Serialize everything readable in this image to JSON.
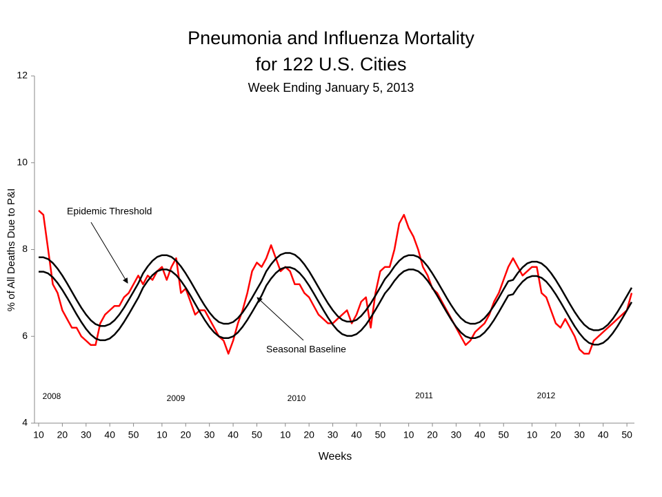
{
  "chart_data": {
    "type": "line",
    "title": "Pneumonia and Influenza Mortality",
    "title_line2": "for 122 U.S. Cities",
    "subtitle": "Week Ending  January 5, 2013",
    "y_label": "% of All Deaths Due to P&I",
    "x_label": "Weeks",
    "ylim": [
      4,
      12
    ],
    "yticks": [
      4,
      6,
      8,
      10,
      12
    ],
    "annotations": [
      "2008",
      "2009",
      "2010",
      "2011",
      "2012"
    ],
    "categories": [
      "10",
      null,
      null,
      null,
      null,
      "20",
      null,
      null,
      null,
      null,
      "30",
      null,
      null,
      null,
      null,
      "40",
      null,
      null,
      null,
      null,
      "50",
      null,
      null,
      null,
      null,
      null,
      "10",
      null,
      null,
      null,
      null,
      "20",
      null,
      null,
      null,
      null,
      "30",
      null,
      null,
      null,
      null,
      "40",
      null,
      null,
      null,
      null,
      "50",
      null,
      null,
      null,
      null,
      null,
      "10",
      null,
      null,
      null,
      null,
      "20",
      null,
      null,
      null,
      null,
      "30",
      null,
      null,
      null,
      null,
      "40",
      null,
      null,
      null,
      null,
      "50",
      null,
      null,
      null,
      null,
      null,
      "10",
      null,
      null,
      null,
      null,
      "20",
      null,
      null,
      null,
      null,
      "30",
      null,
      null,
      null,
      null,
      "40",
      null,
      null,
      null,
      null,
      "50",
      null,
      null,
      null,
      null,
      null,
      "10",
      null,
      null,
      null,
      null,
      "20",
      null,
      null,
      null,
      null,
      "30",
      null,
      null,
      null,
      null,
      "40",
      null,
      null,
      null,
      null,
      "50",
      null
    ],
    "series": [
      {
        "color": "#ff0000",
        "width": 2.5,
        "values": [
          8.9,
          8.8,
          8.0,
          7.2,
          7.0,
          6.6,
          6.4,
          6.2,
          6.2,
          6.0,
          5.9,
          5.8,
          5.8,
          6.3,
          6.5,
          6.6,
          6.7,
          6.7,
          6.9,
          7.0,
          7.2,
          7.4,
          7.2,
          7.4,
          7.3,
          7.5,
          7.6,
          7.3,
          7.6,
          7.8,
          7.0,
          7.1,
          6.8,
          6.5,
          6.6,
          6.6,
          6.4,
          6.2,
          6.0,
          5.9,
          5.6,
          5.9,
          6.3,
          6.6,
          7.0,
          7.5,
          7.7,
          7.6,
          7.8,
          8.1,
          7.8,
          7.5,
          7.6,
          7.5,
          7.2,
          7.2,
          7.0,
          6.9,
          6.7,
          6.5,
          6.4,
          6.3,
          6.3,
          6.4,
          6.5,
          6.6,
          6.3,
          6.5,
          6.8,
          6.9,
          6.2,
          7.0,
          7.5,
          7.6,
          7.6,
          8.0,
          8.6,
          8.8,
          8.5,
          8.3,
          8.0,
          7.6,
          7.4,
          7.1,
          7.0,
          6.8,
          6.6,
          6.4,
          6.2,
          6.0,
          5.8,
          5.9,
          6.1,
          6.2,
          6.3,
          6.5,
          6.8,
          7.0,
          7.3,
          7.6,
          7.8,
          7.6,
          7.4,
          7.5,
          7.6,
          7.6,
          7.0,
          6.9,
          6.6,
          6.3,
          6.2,
          6.4,
          6.2,
          6.0,
          5.7,
          5.6,
          5.6,
          5.9,
          6.0,
          6.1,
          6.2,
          6.3,
          6.4,
          6.5,
          6.6,
          7.0
        ]
      },
      {
        "name": "Epidemic Threshold",
        "color": "#000000",
        "width": 2.5,
        "values": [
          7.82,
          7.82,
          7.78,
          7.69,
          7.56,
          7.4,
          7.22,
          7.03,
          6.84,
          6.66,
          6.5,
          6.37,
          6.28,
          6.24,
          6.24,
          6.28,
          6.37,
          6.5,
          6.66,
          6.84,
          7.03,
          7.22,
          7.45,
          7.61,
          7.74,
          7.83,
          7.87,
          7.87,
          7.83,
          7.74,
          7.61,
          7.45,
          7.27,
          7.08,
          6.89,
          6.71,
          6.55,
          6.42,
          6.33,
          6.29,
          6.29,
          6.33,
          6.42,
          6.55,
          6.71,
          6.89,
          7.08,
          7.27,
          7.5,
          7.66,
          7.79,
          7.88,
          7.92,
          7.92,
          7.88,
          7.79,
          7.66,
          7.5,
          7.32,
          7.13,
          6.94,
          6.76,
          6.6,
          6.47,
          6.38,
          6.34,
          6.34,
          6.38,
          6.47,
          6.6,
          6.76,
          6.94,
          7.13,
          7.32,
          7.45,
          7.61,
          7.74,
          7.83,
          7.87,
          7.87,
          7.83,
          7.74,
          7.61,
          7.45,
          7.27,
          7.08,
          6.89,
          6.71,
          6.55,
          6.42,
          6.33,
          6.29,
          6.29,
          6.33,
          6.42,
          6.55,
          6.71,
          6.89,
          7.08,
          7.27,
          7.3,
          7.46,
          7.59,
          7.68,
          7.72,
          7.72,
          7.68,
          7.59,
          7.46,
          7.3,
          7.12,
          6.93,
          6.74,
          6.56,
          6.4,
          6.27,
          6.18,
          6.14,
          6.14,
          6.18,
          6.27,
          6.4,
          6.56,
          6.74,
          6.93,
          7.12
        ]
      },
      {
        "name": "Seasonal Baseline",
        "color": "#000000",
        "width": 2.5,
        "values": [
          7.49,
          7.49,
          7.45,
          7.36,
          7.23,
          7.07,
          6.89,
          6.7,
          6.51,
          6.33,
          6.17,
          6.04,
          5.95,
          5.91,
          5.91,
          5.95,
          6.04,
          6.17,
          6.33,
          6.51,
          6.7,
          6.89,
          7.12,
          7.28,
          7.41,
          7.5,
          7.54,
          7.54,
          7.5,
          7.41,
          7.28,
          7.12,
          6.94,
          6.75,
          6.56,
          6.38,
          6.22,
          6.09,
          6.0,
          5.96,
          5.96,
          6.0,
          6.09,
          6.22,
          6.38,
          6.56,
          6.75,
          6.94,
          7.17,
          7.33,
          7.46,
          7.55,
          7.59,
          7.59,
          7.55,
          7.46,
          7.33,
          7.17,
          6.99,
          6.8,
          6.61,
          6.43,
          6.27,
          6.14,
          6.05,
          6.01,
          6.01,
          6.05,
          6.14,
          6.27,
          6.43,
          6.61,
          6.8,
          6.99,
          7.12,
          7.28,
          7.41,
          7.5,
          7.54,
          7.54,
          7.5,
          7.41,
          7.28,
          7.12,
          6.94,
          6.75,
          6.56,
          6.38,
          6.22,
          6.09,
          6.0,
          5.96,
          5.96,
          6.0,
          6.09,
          6.22,
          6.38,
          6.56,
          6.75,
          6.94,
          6.97,
          7.13,
          7.26,
          7.35,
          7.39,
          7.39,
          7.35,
          7.26,
          7.13,
          6.97,
          6.79,
          6.6,
          6.41,
          6.23,
          6.07,
          5.94,
          5.85,
          5.81,
          5.81,
          5.85,
          5.94,
          6.07,
          6.23,
          6.41,
          6.6,
          6.79
        ]
      }
    ]
  }
}
